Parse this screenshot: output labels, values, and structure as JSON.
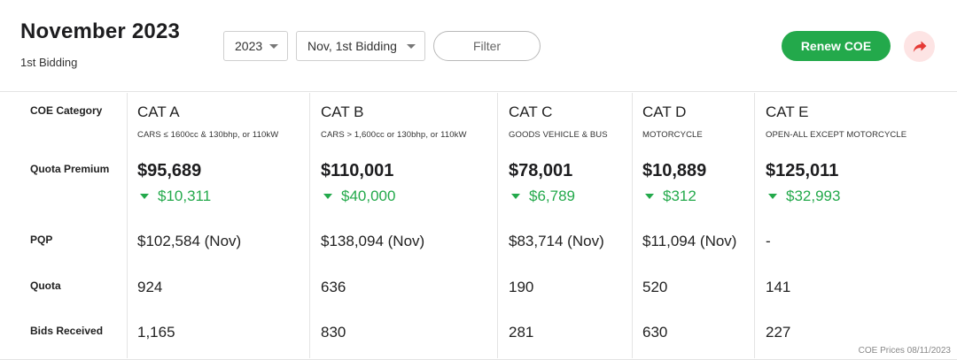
{
  "header": {
    "title": "November 2023",
    "subtitle": "1st Bidding",
    "year_select": "2023",
    "bidding_select": "Nov, 1st Bidding",
    "filter_label": "Filter",
    "renew_label": "Renew COE",
    "share_icon": "share-arrow-icon"
  },
  "row_labels": {
    "category": "COE Category",
    "premium": "Quota Premium",
    "pqp": "PQP",
    "quota": "Quota",
    "bids": "Bids Received"
  },
  "categories": [
    {
      "name": "CAT A",
      "desc": "CARS ≤ 1600cc & 130bhp, or 110kW",
      "premium": "$95,689",
      "change": "$10,311",
      "pqp": "$102,584 (Nov)",
      "quota": "924",
      "bids": "1,165"
    },
    {
      "name": "CAT B",
      "desc": "CARS > 1,600cc or 130bhp, or 110kW",
      "premium": "$110,001",
      "change": "$40,000",
      "pqp": "$138,094 (Nov)",
      "quota": "636",
      "bids": "830"
    },
    {
      "name": "CAT C",
      "desc": "GOODS VEHICLE & BUS",
      "premium": "$78,001",
      "change": "$6,789",
      "pqp": "$83,714 (Nov)",
      "quota": "190",
      "bids": "281"
    },
    {
      "name": "CAT D",
      "desc": "MOTORCYCLE",
      "premium": "$10,889",
      "change": "$312",
      "pqp": "$11,094 (Nov)",
      "quota": "520",
      "bids": "630"
    },
    {
      "name": "CAT E",
      "desc": "OPEN-ALL EXCEPT MOTORCYCLE",
      "premium": "$125,011",
      "change": "$32,993",
      "pqp": "-",
      "quota": "141",
      "bids": "227"
    }
  ],
  "footer": {
    "note": "COE Prices 08/11/2023"
  },
  "colors": {
    "accent_green": "#23a94b",
    "share_bg": "#fde4e4",
    "share_icon": "#e53935"
  }
}
